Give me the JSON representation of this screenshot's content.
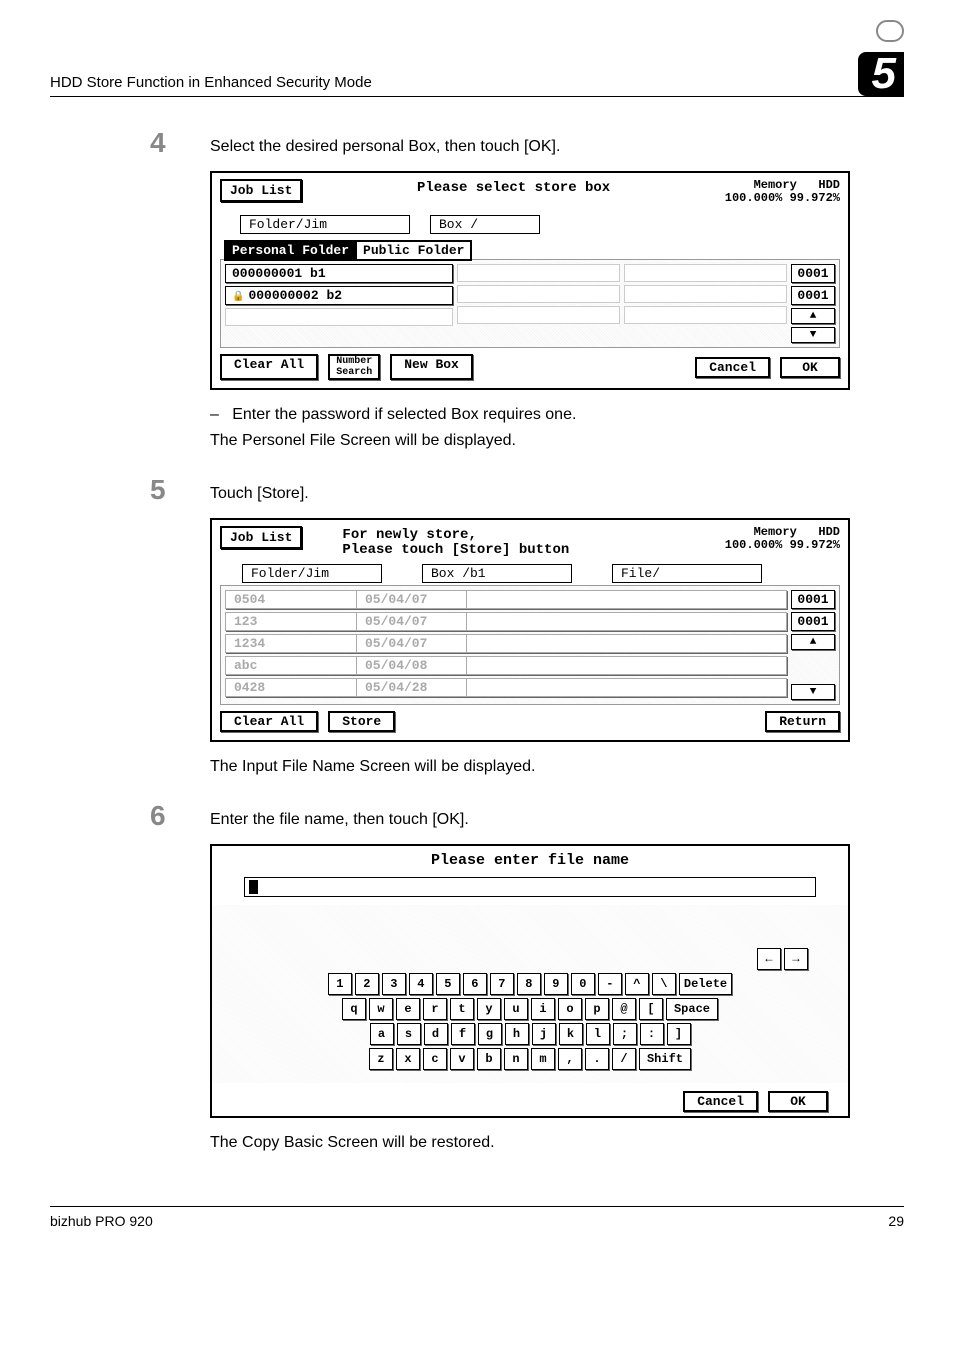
{
  "header": {
    "title": "HDD Store Function in Enhanced Security Mode",
    "chapter_number": "5"
  },
  "steps": {
    "s4": {
      "num": "4",
      "text": "Select the desired personal Box, then touch [OK]."
    },
    "s4_note1": "Enter the password if selected Box requires one.",
    "s4_note2": "The Personel File Screen will be displayed.",
    "s5": {
      "num": "5",
      "text": "Touch [Store]."
    },
    "s5_note": "The Input File Name Screen will be displayed.",
    "s6": {
      "num": "6",
      "text": "Enter the file name, then touch [OK]."
    },
    "s6_note": "The Copy Basic Screen will be restored."
  },
  "panel1": {
    "joblist": "Job List",
    "title": "Please select store box",
    "memory_label": "Memory",
    "memory_val": "100.000%",
    "hdd_label": "HDD",
    "hdd_val": "99.972%",
    "folder_label": "Folder/Jim",
    "box_label": "Box  /",
    "tab_personal": "Personal Folder",
    "tab_public": "Public Folder",
    "row1": "000000001 b1",
    "row2": "000000002 b2",
    "side_0001a": "0001",
    "side_0001b": "0001",
    "side_up": "▲",
    "side_down": "▼",
    "clear_all": "Clear All",
    "number_search": "Number\nSearch",
    "new_box": "New Box",
    "cancel": "Cancel",
    "ok": "OK"
  },
  "panel2": {
    "joblist": "Job List",
    "title1": "For newly store,",
    "title2": "Please touch [Store] button",
    "memory_label": "Memory",
    "memory_val": "100.000%",
    "hdd_label": "HDD",
    "hdd_val": "99.972%",
    "folder_label": "Folder/Jim",
    "box_label": "Box  /b1",
    "file_label": "File/",
    "rows": [
      {
        "name": "0504",
        "date": "05/04/07"
      },
      {
        "name": "123",
        "date": "05/04/07"
      },
      {
        "name": "1234",
        "date": "05/04/07"
      },
      {
        "name": "abc",
        "date": "05/04/08"
      },
      {
        "name": "0428",
        "date": "05/04/28"
      }
    ],
    "side_0001a": "0001",
    "side_0001b": "0001",
    "side_up": "▲",
    "side_down": "▼",
    "clear_all": "Clear All",
    "store": "Store",
    "return": "Return"
  },
  "panel3": {
    "title": "Please enter file name",
    "arrow_left": "←",
    "arrow_right": "→",
    "delete": "Delete",
    "space": "Space",
    "shift": "Shift",
    "cancel": "Cancel",
    "ok": "OK",
    "row_nums": [
      "1",
      "2",
      "3",
      "4",
      "5",
      "6",
      "7",
      "8",
      "9",
      "0",
      "-",
      "^",
      "\\"
    ],
    "row_q": [
      "q",
      "w",
      "e",
      "r",
      "t",
      "y",
      "u",
      "i",
      "o",
      "p",
      "@",
      "["
    ],
    "row_a": [
      "a",
      "s",
      "d",
      "f",
      "g",
      "h",
      "j",
      "k",
      "l",
      ";",
      ":",
      "]"
    ],
    "row_z": [
      "z",
      "x",
      "c",
      "v",
      "b",
      "n",
      "m",
      ",",
      ".",
      "/"
    ]
  },
  "footer": {
    "model": "bizhub PRO 920",
    "page": "29"
  }
}
